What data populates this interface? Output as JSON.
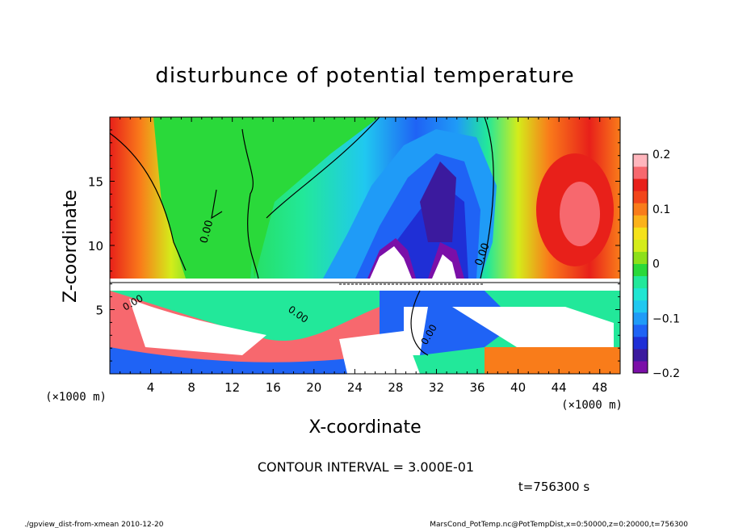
{
  "chart_data": {
    "type": "heatmap",
    "title": "disturbunce of potential temperature",
    "xlabel": "X-coordinate",
    "ylabel": "Z-coordinate",
    "x_unit": "(×1000 m)",
    "y_unit": "(×1000 m)",
    "x_ticks": [
      "4",
      "8",
      "12",
      "16",
      "20",
      "24",
      "28",
      "32",
      "36",
      "40",
      "44",
      "48"
    ],
    "x_tick_values": [
      4,
      8,
      12,
      16,
      20,
      24,
      28,
      32,
      36,
      40,
      44,
      48
    ],
    "y_ticks": [
      "5",
      "10",
      "15"
    ],
    "y_tick_values": [
      5,
      10,
      15
    ],
    "xlim": [
      0,
      50
    ],
    "ylim": [
      0,
      20
    ],
    "colorbar": {
      "labels": [
        "0.2",
        "0.1",
        "0",
        "−0.1",
        "−0.2"
      ],
      "label_values": [
        0.2,
        0.1,
        0,
        -0.1,
        -0.2
      ],
      "range": [
        -0.2,
        0.2
      ],
      "colors": [
        "#7b0fa8",
        "#3b1a9e",
        "#1f2fd6",
        "#1f63f5",
        "#1f9bf7",
        "#20c8f0",
        "#20e6d2",
        "#22e89a",
        "#2ad93a",
        "#8de01a",
        "#d4ec1a",
        "#f5e21a",
        "#fbb21a",
        "#f97c1a",
        "#f2451a",
        "#e8201a",
        "#f7686e",
        "#ffb6bd"
      ]
    },
    "contour_labels": [
      "0.00",
      "0.00",
      "0.00",
      "0.00",
      "0.00"
    ],
    "contour_interval_text": "CONTOUR INTERVAL = 3.000E-01",
    "time_text": "t=756300 s"
  },
  "footer": {
    "left": "./gpview_dist-from-xmean  2010-12-20",
    "right": "MarsCond_PotTemp.nc@PotTempDist,x=0:50000,z=0:20000,t=756300"
  }
}
